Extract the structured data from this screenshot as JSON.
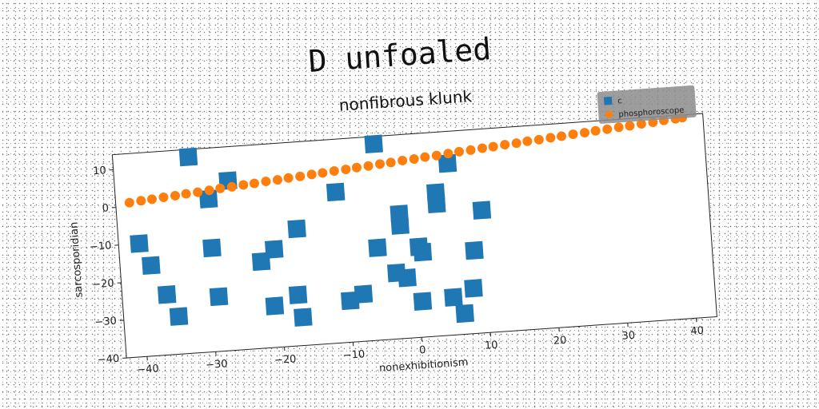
{
  "chart_data": {
    "type": "scatter",
    "title": "D unfoaled",
    "subtitle": "nonfibrous klunk",
    "xlabel": "nonexhibitionism",
    "ylabel": "sarcosporidian",
    "xlim": [
      -43,
      43
    ],
    "ylim": [
      -40,
      14
    ],
    "xticks": [
      -40,
      -30,
      -20,
      -10,
      0,
      10,
      20,
      30,
      40
    ],
    "yticks": [
      10,
      0,
      -10,
      -20,
      -30,
      -40
    ],
    "grid": false,
    "legend_position": "top-right",
    "colors": {
      "c": "#1f77b4",
      "phosphoroscope": "#ff7f0e"
    },
    "series": [
      {
        "name": "c",
        "marker": "square",
        "points": [
          [
            -32,
            12
          ],
          [
            -5,
            12
          ],
          [
            -29.5,
            0.5
          ],
          [
            -26.5,
            5
          ],
          [
            -11,
            0
          ],
          [
            5.5,
            5.5
          ],
          [
            3.5,
            -2
          ],
          [
            3.5,
            -5
          ],
          [
            -2,
            -7
          ],
          [
            -2,
            -10
          ],
          [
            -40,
            -10
          ],
          [
            -38.5,
            -16
          ],
          [
            -36.5,
            -24
          ],
          [
            -35,
            -30
          ],
          [
            -29.5,
            -12.5
          ],
          [
            -29,
            -25.5
          ],
          [
            -22.5,
            -17
          ],
          [
            -20.5,
            -14
          ],
          [
            -21,
            -29
          ],
          [
            -17,
            -9
          ],
          [
            -17.5,
            -26.5
          ],
          [
            -17,
            -32.5
          ],
          [
            -10,
            -29
          ],
          [
            -8,
            -27.5
          ],
          [
            -5.5,
            -15.5
          ],
          [
            -3,
            -22.5
          ],
          [
            -1.5,
            -24
          ],
          [
            0.5,
            -16
          ],
          [
            1,
            -17.5
          ],
          [
            0.5,
            -30.5
          ],
          [
            5,
            -30
          ],
          [
            6.5,
            -34.5
          ],
          [
            8.5,
            -18
          ],
          [
            8,
            -28
          ],
          [
            10,
            -7.5
          ]
        ]
      },
      {
        "name": "phosphoroscope",
        "marker": "circle",
        "x": [
          -41,
          -39.3,
          -37.7,
          -36,
          -34.3,
          -32.7,
          -31,
          -29.3,
          -27.7,
          -26,
          -24.3,
          -22.7,
          -21,
          -19.3,
          -17.7,
          -16,
          -14.3,
          -12.7,
          -11,
          -9.3,
          -7.7,
          -6,
          -4.3,
          -2.7,
          -1,
          0.7,
          2.3,
          4,
          5.7,
          7.3,
          9,
          10.7,
          12.3,
          14,
          15.7,
          17.3,
          19,
          20.7,
          22.3,
          24,
          25.7,
          27.3,
          29,
          30.7,
          32.3,
          34,
          35.7,
          37.3,
          39,
          40
        ],
        "y": [
          1,
          1.3,
          1.5,
          1.8,
          2,
          2.3,
          2.5,
          2.8,
          3.1,
          3.3,
          3.6,
          3.8,
          4.1,
          4.3,
          4.6,
          4.8,
          5.1,
          5.3,
          5.6,
          5.8,
          6.1,
          6.3,
          6.6,
          6.8,
          7.1,
          7.3,
          7.6,
          7.8,
          8.1,
          8.4,
          8.6,
          8.9,
          9.1,
          9.4,
          9.6,
          9.9,
          10.1,
          10.4,
          10.6,
          10.9,
          11.1,
          11.4,
          11.6,
          11.9,
          12.1,
          12.4,
          12.6,
          12.9,
          13.1,
          13.3
        ]
      }
    ]
  }
}
